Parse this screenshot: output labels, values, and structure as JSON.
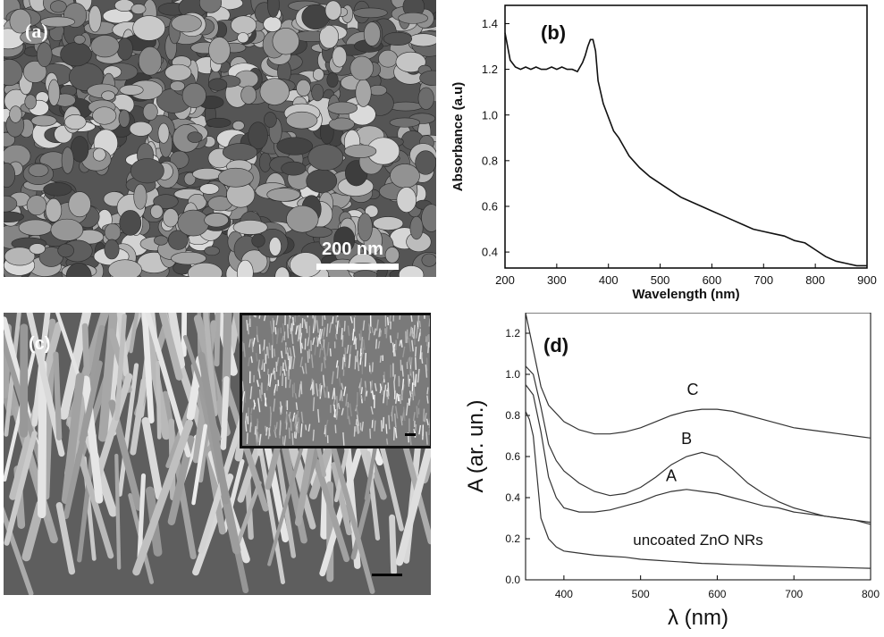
{
  "panels": {
    "a": {
      "label": "(a)",
      "scale_bar_text": "200 nm"
    },
    "b": {
      "label": "(b)"
    },
    "c": {
      "label": "(c)"
    },
    "d": {
      "label": "(d)"
    }
  },
  "chart_data": [
    {
      "panel": "b",
      "type": "line",
      "xlabel": "Wavelength (nm)",
      "ylabel": "Absorbance (a.u)",
      "xlim": [
        200,
        900
      ],
      "ylim": [
        0.33,
        1.48
      ],
      "xticks": [
        "200",
        "300",
        "400",
        "500",
        "600",
        "700",
        "800",
        "900"
      ],
      "yticks": [
        "0.4",
        "0.6",
        "0.8",
        "1.0",
        "1.2",
        "1.4"
      ],
      "series": [
        {
          "x": [
            200,
            205,
            210,
            220,
            230,
            240,
            250,
            260,
            270,
            280,
            290,
            300,
            310,
            320,
            330,
            340,
            350,
            355,
            360,
            365,
            370,
            375,
            380,
            390,
            400,
            410,
            420,
            430,
            440,
            460,
            480,
            500,
            520,
            540,
            560,
            580,
            600,
            620,
            640,
            660,
            680,
            700,
            720,
            740,
            760,
            780,
            800,
            820,
            840,
            860,
            880,
            900
          ],
          "y": [
            1.36,
            1.3,
            1.24,
            1.21,
            1.2,
            1.21,
            1.2,
            1.21,
            1.2,
            1.2,
            1.21,
            1.2,
            1.21,
            1.2,
            1.2,
            1.19,
            1.23,
            1.26,
            1.3,
            1.33,
            1.33,
            1.28,
            1.15,
            1.05,
            0.99,
            0.93,
            0.9,
            0.86,
            0.82,
            0.77,
            0.73,
            0.7,
            0.67,
            0.64,
            0.62,
            0.6,
            0.58,
            0.56,
            0.54,
            0.52,
            0.5,
            0.49,
            0.48,
            0.47,
            0.45,
            0.44,
            0.41,
            0.38,
            0.36,
            0.35,
            0.34,
            0.34
          ]
        }
      ]
    },
    {
      "panel": "d",
      "type": "line",
      "xlabel": "λ (nm)",
      "ylabel": "A (ar. un.)",
      "xlim": [
        350,
        800
      ],
      "ylim": [
        0.0,
        1.3
      ],
      "xticks": [
        "400",
        "500",
        "600",
        "700",
        "800"
      ],
      "yticks": [
        "0.0",
        "0.2",
        "0.4",
        "0.6",
        "0.8",
        "1.0",
        "1.2"
      ],
      "series": [
        {
          "name": "C",
          "x": [
            350,
            360,
            370,
            380,
            400,
            420,
            440,
            460,
            480,
            500,
            520,
            540,
            560,
            580,
            600,
            620,
            640,
            660,
            680,
            700,
            720,
            740,
            760,
            780,
            800
          ],
          "y": [
            1.3,
            1.12,
            0.94,
            0.85,
            0.77,
            0.73,
            0.71,
            0.71,
            0.72,
            0.74,
            0.77,
            0.8,
            0.82,
            0.83,
            0.83,
            0.82,
            0.8,
            0.78,
            0.76,
            0.74,
            0.73,
            0.72,
            0.71,
            0.7,
            0.69
          ]
        },
        {
          "name": "B",
          "x": [
            350,
            360,
            370,
            380,
            390,
            400,
            420,
            440,
            460,
            480,
            500,
            520,
            540,
            560,
            580,
            600,
            620,
            640,
            660,
            680,
            700,
            720,
            740,
            760,
            780,
            800
          ],
          "y": [
            1.04,
            1.0,
            0.84,
            0.66,
            0.58,
            0.53,
            0.47,
            0.43,
            0.41,
            0.42,
            0.45,
            0.5,
            0.56,
            0.6,
            0.62,
            0.6,
            0.54,
            0.47,
            0.42,
            0.38,
            0.35,
            0.33,
            0.31,
            0.3,
            0.29,
            0.28
          ]
        },
        {
          "name": "A",
          "x": [
            350,
            360,
            370,
            380,
            390,
            400,
            420,
            440,
            460,
            480,
            500,
            520,
            540,
            560,
            580,
            600,
            620,
            640,
            660,
            680,
            700,
            720,
            740,
            760,
            780,
            800
          ],
          "y": [
            0.95,
            0.9,
            0.72,
            0.5,
            0.4,
            0.35,
            0.33,
            0.33,
            0.34,
            0.36,
            0.38,
            0.41,
            0.43,
            0.44,
            0.43,
            0.42,
            0.4,
            0.38,
            0.36,
            0.35,
            0.33,
            0.32,
            0.31,
            0.3,
            0.29,
            0.27
          ]
        },
        {
          "name": "uncoated ZnO NRs",
          "x": [
            350,
            355,
            360,
            365,
            370,
            380,
            390,
            400,
            420,
            440,
            460,
            480,
            500,
            520,
            540,
            560,
            580,
            600,
            620,
            640,
            660,
            680,
            700,
            720,
            740,
            760,
            780,
            800
          ],
          "y": [
            0.82,
            0.78,
            0.7,
            0.5,
            0.3,
            0.2,
            0.16,
            0.14,
            0.13,
            0.12,
            0.115,
            0.11,
            0.1,
            0.095,
            0.09,
            0.085,
            0.08,
            0.078,
            0.075,
            0.073,
            0.07,
            0.068,
            0.066,
            0.064,
            0.062,
            0.06,
            0.058,
            0.056
          ]
        }
      ]
    }
  ]
}
